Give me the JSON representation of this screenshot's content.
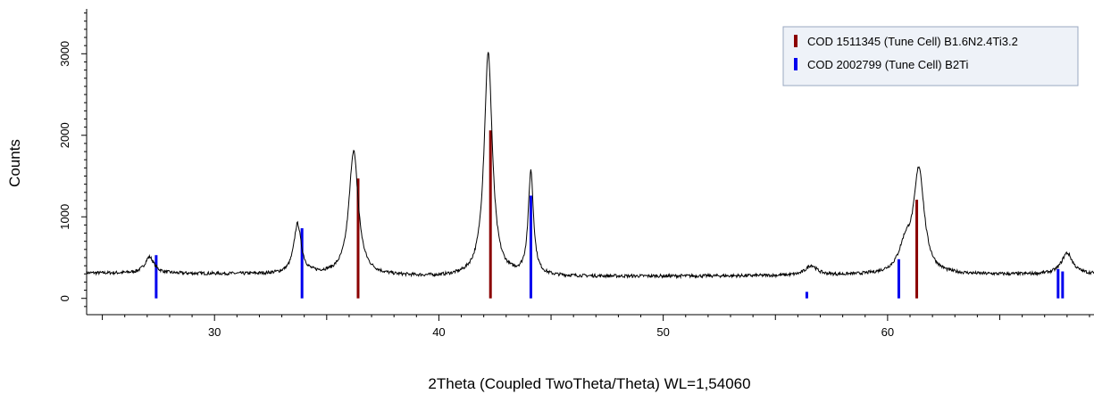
{
  "chart_data": {
    "type": "line",
    "xlabel": "2Theta (Coupled TwoTheta/Theta) WL=1,54060",
    "ylabel": "Counts",
    "xlim": [
      24.3,
      69.2
    ],
    "ylim": [
      -200,
      3550
    ],
    "xticks": [
      30,
      40,
      50,
      60
    ],
    "yticks": [
      0,
      1000,
      2000,
      3000
    ],
    "grid": false,
    "legend_position": "top-right",
    "pattern": {
      "color": "#000000",
      "baseline": [
        [
          24.3,
          310
        ],
        [
          30,
          300
        ],
        [
          35,
          290
        ],
        [
          40,
          260
        ],
        [
          45,
          265
        ],
        [
          50,
          270
        ],
        [
          55,
          275
        ],
        [
          60,
          285
        ],
        [
          65,
          290
        ],
        [
          69.2,
          295
        ]
      ],
      "peaks": [
        {
          "center": 27.1,
          "height": 200,
          "width": 0.25
        },
        {
          "center": 33.7,
          "height": 610,
          "width": 0.2
        },
        {
          "center": 36.2,
          "height": 1520,
          "width": 0.25
        },
        {
          "center": 42.2,
          "height": 2740,
          "width": 0.22
        },
        {
          "center": 44.1,
          "height": 1270,
          "width": 0.14
        },
        {
          "center": 56.6,
          "height": 120,
          "width": 0.3
        },
        {
          "center": 60.8,
          "height": 320,
          "width": 0.35
        },
        {
          "center": 61.4,
          "height": 1250,
          "width": 0.28
        },
        {
          "center": 68.0,
          "height": 260,
          "width": 0.3
        }
      ]
    },
    "reference_lines": [
      {
        "name": "COD 1511345 (Tune Cell) B1.6N2.4Ti3.2",
        "color": "#8b0000",
        "lines": [
          {
            "x": 36.4,
            "y": 1470
          },
          {
            "x": 42.3,
            "y": 2060
          },
          {
            "x": 61.3,
            "y": 1210
          }
        ]
      },
      {
        "name": "COD 2002799 (Tune Cell) B2Ti",
        "color": "#0000ee",
        "lines": [
          {
            "x": 27.4,
            "y": 530
          },
          {
            "x": 33.9,
            "y": 860
          },
          {
            "x": 44.1,
            "y": 1260
          },
          {
            "x": 56.4,
            "y": 80
          },
          {
            "x": 60.5,
            "y": 480
          },
          {
            "x": 67.6,
            "y": 360
          },
          {
            "x": 67.8,
            "y": 330
          }
        ]
      }
    ]
  }
}
